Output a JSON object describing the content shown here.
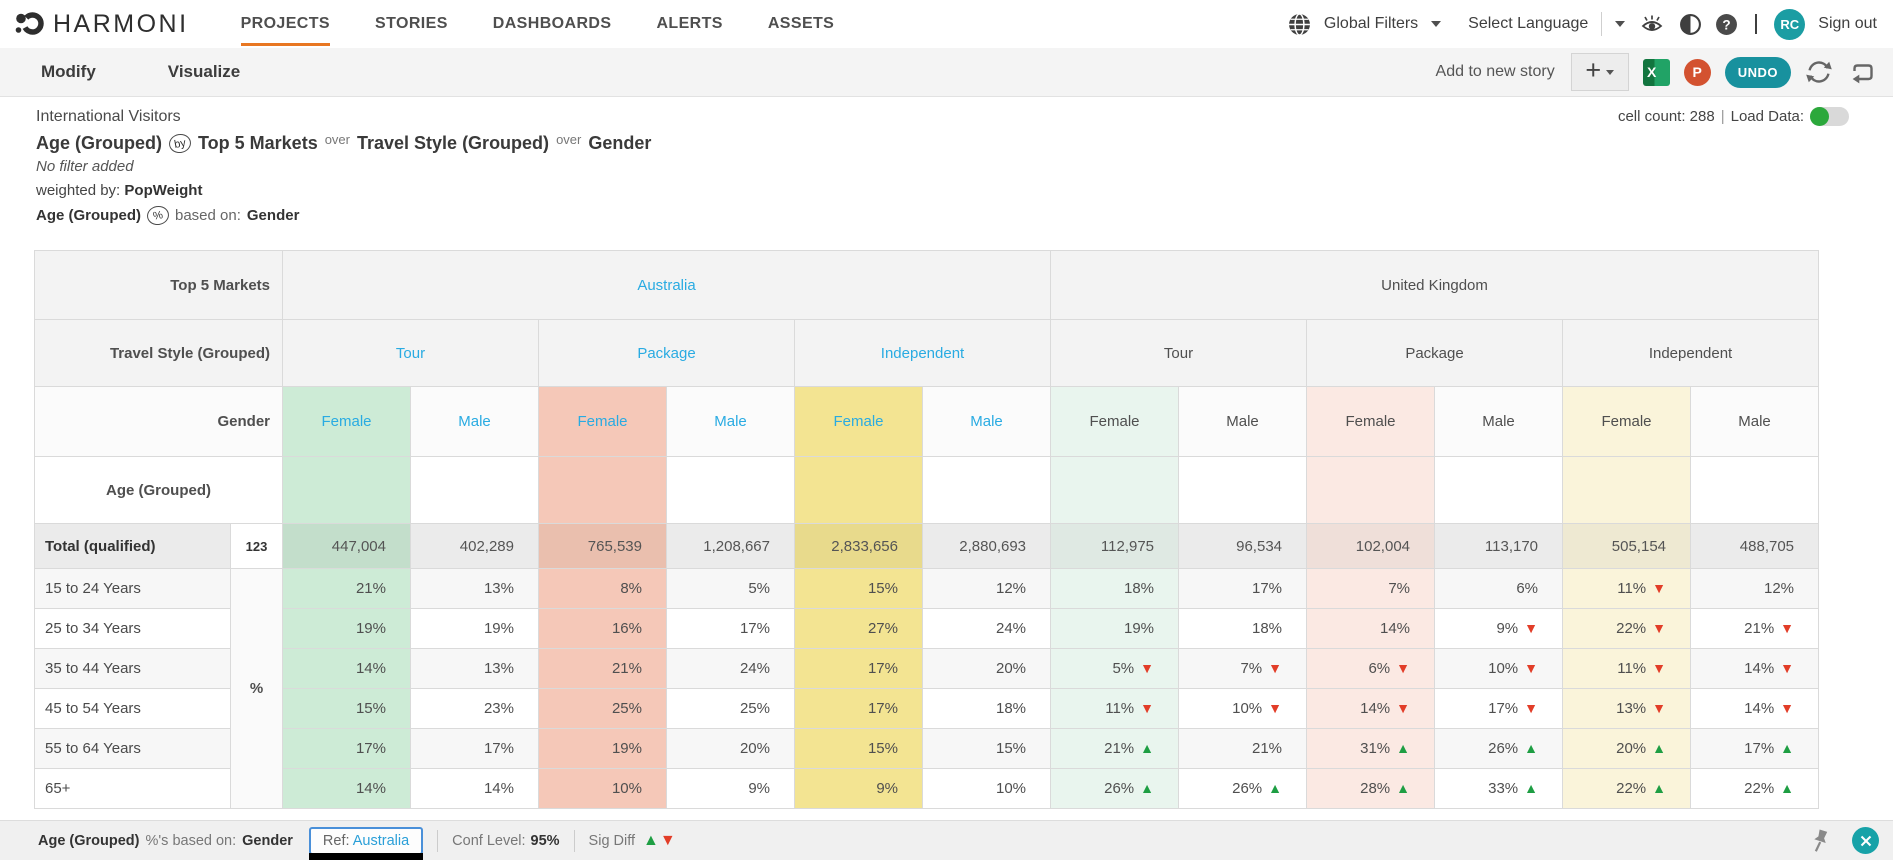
{
  "brand": "HARMONI",
  "nav": {
    "items": [
      {
        "label": "PROJECTS",
        "active": true
      },
      {
        "label": "STORIES",
        "active": false
      },
      {
        "label": "DASHBOARDS",
        "active": false
      },
      {
        "label": "ALERTS",
        "active": false
      },
      {
        "label": "ASSETS",
        "active": false
      }
    ],
    "global_filters": "Global Filters",
    "select_language": "Select Language",
    "avatar_initials": "RC",
    "sign_out": "Sign out"
  },
  "toolbar": {
    "tabs": [
      "Modify",
      "Visualize"
    ],
    "add_to_story": "Add to new story",
    "excel_label": "X",
    "ppt_label": "P",
    "undo_label": "UNDO"
  },
  "meta": {
    "project": "International Visitors",
    "title": {
      "part1": "Age (Grouped)",
      "by_icon": "by",
      "part2": "Top 5 Markets",
      "over1": "over",
      "part3": "Travel Style (Grouped)",
      "over2": "over",
      "part4": "Gender"
    },
    "filter": "No filter added",
    "weighted_prefix": "weighted by:",
    "weight": "PopWeight",
    "based_lead": "Age (Grouped)",
    "pct_icon": "%",
    "based_mid": "based on:",
    "based_value": "Gender",
    "cell_count": "cell count: 288",
    "load_data": "Load Data:"
  },
  "table": {
    "corner_markets": "Top 5 Markets",
    "corner_styles": "Travel Style (Grouped)",
    "corner_gender": "Gender",
    "corner_age": "Age (Grouped)",
    "markets": [
      {
        "label": "Australia",
        "accent": true
      },
      {
        "label": "United Kingdom",
        "accent": false
      }
    ],
    "styles": [
      {
        "label": "Tour",
        "accent": true
      },
      {
        "label": "Package",
        "accent": true
      },
      {
        "label": "Independent",
        "accent": true
      },
      {
        "label": "Tour",
        "accent": false
      },
      {
        "label": "Package",
        "accent": false
      },
      {
        "label": "Independent",
        "accent": false
      }
    ],
    "genders": [
      {
        "label": "Female",
        "tint": "g",
        "accent": true
      },
      {
        "label": "Male",
        "tint": "",
        "accent": true
      },
      {
        "label": "Female",
        "tint": "s",
        "accent": true
      },
      {
        "label": "Male",
        "tint": "",
        "accent": true
      },
      {
        "label": "Female",
        "tint": "y",
        "accent": true
      },
      {
        "label": "Male",
        "tint": "",
        "accent": true
      },
      {
        "label": "Female",
        "tint": "gl",
        "accent": false
      },
      {
        "label": "Male",
        "tint": "",
        "accent": false
      },
      {
        "label": "Female",
        "tint": "sl",
        "accent": false
      },
      {
        "label": "Male",
        "tint": "",
        "accent": false
      },
      {
        "label": "Female",
        "tint": "yl",
        "accent": false
      },
      {
        "label": "Male",
        "tint": "",
        "accent": false
      }
    ],
    "total": {
      "label": "Total (qualified)",
      "badge": "123",
      "values": [
        "447,004",
        "402,289",
        "765,539",
        "1,208,667",
        "2,833,656",
        "2,880,693",
        "112,975",
        "96,534",
        "102,004",
        "113,170",
        "505,154",
        "488,705"
      ]
    },
    "pct_symbol": "%",
    "rows": [
      {
        "label": "15 to 24 Years",
        "cells": [
          {
            "v": "21%"
          },
          {
            "v": "13%"
          },
          {
            "v": "8%"
          },
          {
            "v": "5%"
          },
          {
            "v": "15%"
          },
          {
            "v": "12%"
          },
          {
            "v": "18%"
          },
          {
            "v": "17%"
          },
          {
            "v": "7%"
          },
          {
            "v": "6%"
          },
          {
            "v": "11%",
            "d": "down"
          },
          {
            "v": "12%"
          }
        ]
      },
      {
        "label": "25 to 34 Years",
        "cells": [
          {
            "v": "19%"
          },
          {
            "v": "19%"
          },
          {
            "v": "16%"
          },
          {
            "v": "17%"
          },
          {
            "v": "27%"
          },
          {
            "v": "24%"
          },
          {
            "v": "19%"
          },
          {
            "v": "18%"
          },
          {
            "v": "14%"
          },
          {
            "v": "9%",
            "d": "down"
          },
          {
            "v": "22%",
            "d": "down"
          },
          {
            "v": "21%",
            "d": "down"
          }
        ]
      },
      {
        "label": "35 to 44 Years",
        "cells": [
          {
            "v": "14%"
          },
          {
            "v": "13%"
          },
          {
            "v": "21%"
          },
          {
            "v": "24%"
          },
          {
            "v": "17%"
          },
          {
            "v": "20%"
          },
          {
            "v": "5%",
            "d": "down"
          },
          {
            "v": "7%",
            "d": "down"
          },
          {
            "v": "6%",
            "d": "down"
          },
          {
            "v": "10%",
            "d": "down"
          },
          {
            "v": "11%",
            "d": "down"
          },
          {
            "v": "14%",
            "d": "down"
          }
        ]
      },
      {
        "label": "45 to 54 Years",
        "cells": [
          {
            "v": "15%"
          },
          {
            "v": "23%"
          },
          {
            "v": "25%"
          },
          {
            "v": "25%"
          },
          {
            "v": "17%"
          },
          {
            "v": "18%"
          },
          {
            "v": "11%",
            "d": "down"
          },
          {
            "v": "10%",
            "d": "down"
          },
          {
            "v": "14%",
            "d": "down"
          },
          {
            "v": "17%",
            "d": "down"
          },
          {
            "v": "13%",
            "d": "down"
          },
          {
            "v": "14%",
            "d": "down"
          }
        ]
      },
      {
        "label": "55 to 64 Years",
        "cells": [
          {
            "v": "17%"
          },
          {
            "v": "17%"
          },
          {
            "v": "19%"
          },
          {
            "v": "20%"
          },
          {
            "v": "15%"
          },
          {
            "v": "15%"
          },
          {
            "v": "21%",
            "d": "up"
          },
          {
            "v": "21%"
          },
          {
            "v": "31%",
            "d": "up"
          },
          {
            "v": "26%",
            "d": "up"
          },
          {
            "v": "20%",
            "d": "up"
          },
          {
            "v": "17%",
            "d": "up"
          }
        ]
      },
      {
        "label": "65+",
        "cells": [
          {
            "v": "14%"
          },
          {
            "v": "14%"
          },
          {
            "v": "10%"
          },
          {
            "v": "9%"
          },
          {
            "v": "9%"
          },
          {
            "v": "10%"
          },
          {
            "v": "26%",
            "d": "up"
          },
          {
            "v": "26%",
            "d": "up"
          },
          {
            "v": "28%",
            "d": "up"
          },
          {
            "v": "33%",
            "d": "up"
          },
          {
            "v": "22%",
            "d": "up"
          },
          {
            "v": "22%",
            "d": "up"
          }
        ]
      }
    ]
  },
  "footer": {
    "lead": "Age (Grouped)",
    "mid": "%'s based on:",
    "value": "Gender",
    "ref_label": "Ref:",
    "ref_value": "Australia",
    "conf_label": "Conf Level:",
    "conf_value": "95%",
    "sig_label": "Sig Diff",
    "up_tri": "▲",
    "down_tri": "▼"
  },
  "colors": {
    "accent_blue": "#29abe2",
    "orange": "#e87722",
    "teal": "#18919e",
    "col_green": "#cdebd6",
    "col_salmon": "#f5c8b8",
    "col_yellow": "#f3e492",
    "col_green_light": "#e9f5ee",
    "col_salmon_light": "#fbe9e3",
    "col_yellow_light": "#faf4da",
    "sig_up": "#1e9e43",
    "sig_down": "#e23d28"
  }
}
